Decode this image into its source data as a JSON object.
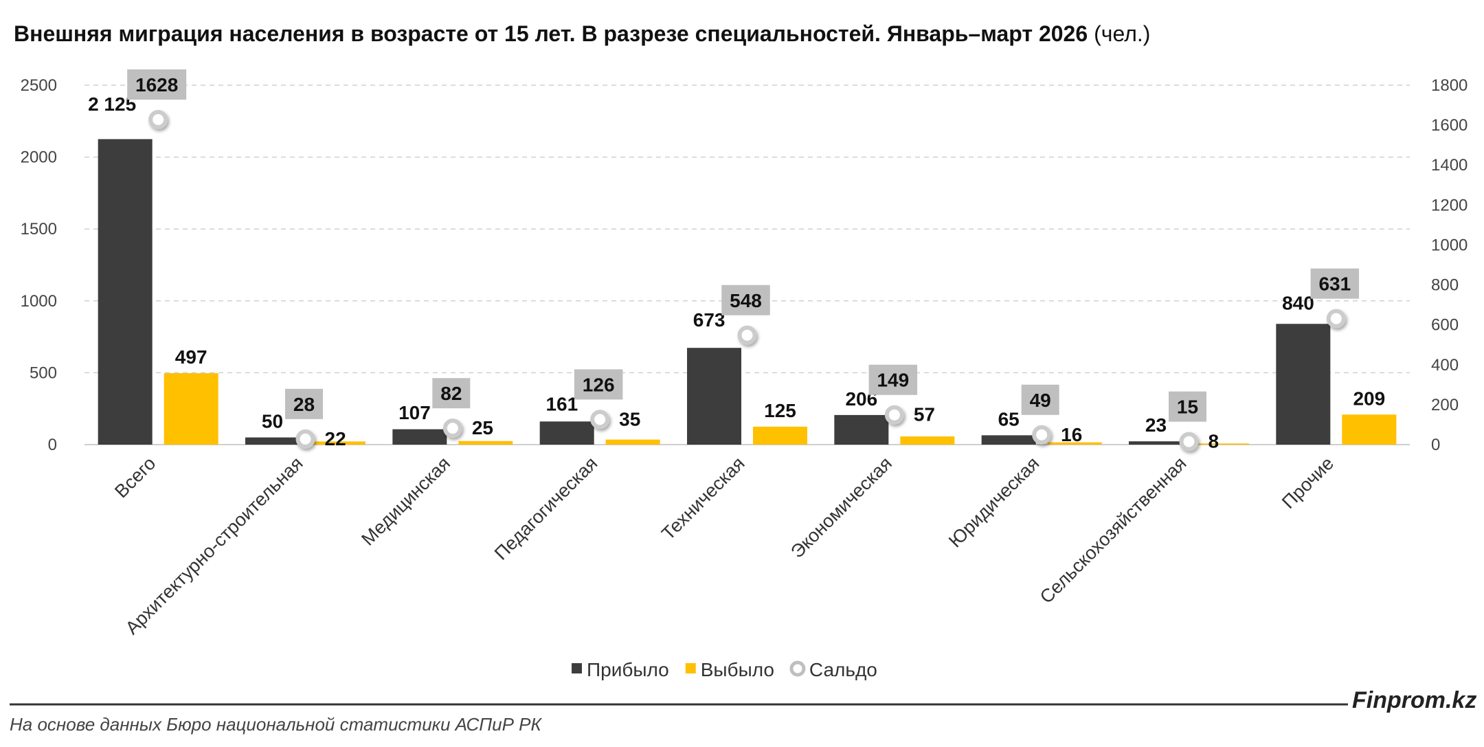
{
  "chart_data": {
    "type": "bar",
    "title": "Внешняя миграция населения в возрасте от 15 лет. В разрезе специальностей. Январь–март 2026",
    "title_unit": "(чел.)",
    "categories": [
      "Всего",
      "Архитектурно-строительная",
      "Медицинская",
      "Педагогическая",
      "Техническая",
      "Экономическая",
      "Юридическая",
      "Сельскохозяйственная",
      "Прочие"
    ],
    "series": [
      {
        "name": "Прибыло",
        "kind": "bar",
        "axis": "left",
        "color": "#3d3d3d",
        "values": [
          2125,
          50,
          107,
          161,
          673,
          206,
          65,
          23,
          840
        ],
        "labels": [
          "2 125",
          "50",
          "107",
          "161",
          "673",
          "206",
          "65",
          "23",
          "840"
        ]
      },
      {
        "name": "Выбыло",
        "kind": "bar",
        "axis": "left",
        "color": "#ffc000",
        "values": [
          497,
          22,
          25,
          35,
          125,
          57,
          16,
          8,
          209
        ],
        "labels": [
          "497",
          "22",
          "25",
          "35",
          "125",
          "57",
          "16",
          "8",
          "209"
        ]
      },
      {
        "name": "Сальдо",
        "kind": "marker",
        "axis": "right",
        "color": "#ffffff",
        "values": [
          1628,
          28,
          82,
          126,
          548,
          149,
          49,
          15,
          631
        ],
        "labels": [
          "1628",
          "28",
          "82",
          "126",
          "548",
          "149",
          "49",
          "15",
          "631"
        ]
      }
    ],
    "y_left": {
      "min": 0,
      "max": 2500,
      "ticks": [
        0,
        500,
        1000,
        1500,
        2000,
        2500
      ],
      "tick_labels": [
        "0",
        "500",
        "1000",
        "1500",
        "2000",
        "2500"
      ]
    },
    "y_right": {
      "min": 0,
      "max": 1800,
      "ticks": [
        0,
        200,
        400,
        600,
        800,
        1000,
        1200,
        1400,
        1600,
        1800
      ],
      "tick_labels": [
        "0",
        "200",
        "400",
        "600",
        "800",
        "1000",
        "1200",
        "1400",
        "1600",
        "1800"
      ]
    },
    "grid": true,
    "legend_position": "bottom",
    "label_box_color": "#bfbfbf"
  },
  "footer": {
    "brand": "Finprom.kz",
    "source": "На основе данных Бюро национальной статистики АСПиР РК"
  }
}
